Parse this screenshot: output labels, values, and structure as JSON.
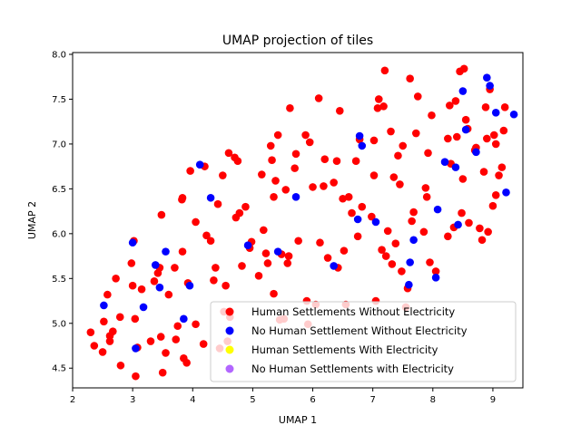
{
  "chart_data": {
    "type": "scatter",
    "title": "UMAP projection of tiles",
    "xlabel": "UMAP 1",
    "ylabel": "UMAP 2",
    "xlim": [
      2.0,
      9.5
    ],
    "ylim": [
      4.28,
      8.02
    ],
    "x_ticks": [
      2,
      3,
      4,
      5,
      6,
      7,
      8,
      9
    ],
    "y_ticks": [
      4.5,
      5.0,
      5.5,
      6.0,
      6.5,
      7.0,
      7.5,
      8.0
    ],
    "x_tick_labels": [
      "2",
      "3",
      "4",
      "5",
      "6",
      "7",
      "8",
      "9"
    ],
    "y_tick_labels": [
      "4.5",
      "5.0",
      "5.5",
      "6.0",
      "6.5",
      "7.0",
      "7.5",
      "8.0"
    ],
    "grid": false,
    "legend_position": "lower-right",
    "series": [
      {
        "name": "Human Settlements Without Electricity",
        "color": "#ff0000",
        "points": [
          [
            2.3,
            4.9
          ],
          [
            2.36,
            4.75
          ],
          [
            2.5,
            4.68
          ],
          [
            2.52,
            5.02
          ],
          [
            2.58,
            5.32
          ],
          [
            2.62,
            4.86
          ],
          [
            2.67,
            4.91
          ],
          [
            2.72,
            5.5
          ],
          [
            2.79,
            5.07
          ],
          [
            2.8,
            4.53
          ],
          [
            2.62,
            4.8
          ],
          [
            2.98,
            5.67
          ],
          [
            3.0,
            5.42
          ],
          [
            3.02,
            5.92
          ],
          [
            3.04,
            5.05
          ],
          [
            3.05,
            4.41
          ],
          [
            3.08,
            4.73
          ],
          [
            3.15,
            5.38
          ],
          [
            3.3,
            4.8
          ],
          [
            3.36,
            5.47
          ],
          [
            3.42,
            5.56
          ],
          [
            3.45,
            5.62
          ],
          [
            3.47,
            4.85
          ],
          [
            3.48,
            6.21
          ],
          [
            3.5,
            4.45
          ],
          [
            3.55,
            4.67
          ],
          [
            3.6,
            5.32
          ],
          [
            3.7,
            5.62
          ],
          [
            3.72,
            4.82
          ],
          [
            3.75,
            4.97
          ],
          [
            3.82,
            6.38
          ],
          [
            3.83,
            6.4
          ],
          [
            3.83,
            5.8
          ],
          [
            3.85,
            4.61
          ],
          [
            3.9,
            4.56
          ],
          [
            3.92,
            5.45
          ],
          [
            3.96,
            6.7
          ],
          [
            4.05,
            6.13
          ],
          [
            4.05,
            4.99
          ],
          [
            4.18,
            4.77
          ],
          [
            4.2,
            6.75
          ],
          [
            4.23,
            5.98
          ],
          [
            4.3,
            5.92
          ],
          [
            4.35,
            5.48
          ],
          [
            4.38,
            5.62
          ],
          [
            4.42,
            6.33
          ],
          [
            4.45,
            4.72
          ],
          [
            4.5,
            6.65
          ],
          [
            4.52,
            5.13
          ],
          [
            4.55,
            5.42
          ],
          [
            4.58,
            4.8
          ],
          [
            4.6,
            6.9
          ],
          [
            4.62,
            5.07
          ],
          [
            4.7,
            6.85
          ],
          [
            4.72,
            6.18
          ],
          [
            4.75,
            6.81
          ],
          [
            4.78,
            6.23
          ],
          [
            4.82,
            5.64
          ],
          [
            4.88,
            6.3
          ],
          [
            4.95,
            5.84
          ],
          [
            4.98,
            5.91
          ],
          [
            5.1,
            5.53
          ],
          [
            5.15,
            6.66
          ],
          [
            5.18,
            6.04
          ],
          [
            5.22,
            5.78
          ],
          [
            5.25,
            5.67
          ],
          [
            5.3,
            6.98
          ],
          [
            5.32,
            6.82
          ],
          [
            5.35,
            6.41
          ],
          [
            5.35,
            5.33
          ],
          [
            5.38,
            6.59
          ],
          [
            5.42,
            7.1
          ],
          [
            5.45,
            5.04
          ],
          [
            5.48,
            5.77
          ],
          [
            5.52,
            5.05
          ],
          [
            5.55,
            6.49
          ],
          [
            5.58,
            5.67
          ],
          [
            5.6,
            5.75
          ],
          [
            5.62,
            7.4
          ],
          [
            5.7,
            6.73
          ],
          [
            5.72,
            6.89
          ],
          [
            5.76,
            5.92
          ],
          [
            5.88,
            7.1
          ],
          [
            5.9,
            5.25
          ],
          [
            5.92,
            4.99
          ],
          [
            5.95,
            7.02
          ],
          [
            6.0,
            6.52
          ],
          [
            6.05,
            5.21
          ],
          [
            6.1,
            7.51
          ],
          [
            6.12,
            5.9
          ],
          [
            6.18,
            6.53
          ],
          [
            6.2,
            6.83
          ],
          [
            6.25,
            5.73
          ],
          [
            6.35,
            6.57
          ],
          [
            6.4,
            6.81
          ],
          [
            6.42,
            5.62
          ],
          [
            6.45,
            7.37
          ],
          [
            6.5,
            6.39
          ],
          [
            6.52,
            5.81
          ],
          [
            6.55,
            5.21
          ],
          [
            6.6,
            6.41
          ],
          [
            6.65,
            6.23
          ],
          [
            6.72,
            6.81
          ],
          [
            6.75,
            5.97
          ],
          [
            6.78,
            7.05
          ],
          [
            6.82,
            6.3
          ],
          [
            6.98,
            6.19
          ],
          [
            7.02,
            7.04
          ],
          [
            7.02,
            6.65
          ],
          [
            7.05,
            5.25
          ],
          [
            7.08,
            7.4
          ],
          [
            7.1,
            7.5
          ],
          [
            7.15,
            5.82
          ],
          [
            7.18,
            7.42
          ],
          [
            7.2,
            7.82
          ],
          [
            7.22,
            5.75
          ],
          [
            7.25,
            6.03
          ],
          [
            7.3,
            7.14
          ],
          [
            7.32,
            5.66
          ],
          [
            7.35,
            6.63
          ],
          [
            7.38,
            5.89
          ],
          [
            7.42,
            6.87
          ],
          [
            7.45,
            6.55
          ],
          [
            7.48,
            5.58
          ],
          [
            7.5,
            6.98
          ],
          [
            7.55,
            5.18
          ],
          [
            7.58,
            5.39
          ],
          [
            7.62,
            7.73
          ],
          [
            7.65,
            6.14
          ],
          [
            7.68,
            6.24
          ],
          [
            7.72,
            7.12
          ],
          [
            7.75,
            7.53
          ],
          [
            7.85,
            6.02
          ],
          [
            7.88,
            6.51
          ],
          [
            7.9,
            6.41
          ],
          [
            7.92,
            6.9
          ],
          [
            7.95,
            5.68
          ],
          [
            7.98,
            7.32
          ],
          [
            8.05,
            5.58
          ],
          [
            8.25,
            7.06
          ],
          [
            8.25,
            5.97
          ],
          [
            8.28,
            7.43
          ],
          [
            8.3,
            6.78
          ],
          [
            8.35,
            6.07
          ],
          [
            8.38,
            7.48
          ],
          [
            8.4,
            7.08
          ],
          [
            8.45,
            7.81
          ],
          [
            8.48,
            6.23
          ],
          [
            8.5,
            6.61
          ],
          [
            8.52,
            7.84
          ],
          [
            8.55,
            7.27
          ],
          [
            8.58,
            7.17
          ],
          [
            8.6,
            6.12
          ],
          [
            8.7,
            6.93
          ],
          [
            8.72,
            6.96
          ],
          [
            8.78,
            6.06
          ],
          [
            8.82,
            5.93
          ],
          [
            8.85,
            6.69
          ],
          [
            8.88,
            7.41
          ],
          [
            8.9,
            7.06
          ],
          [
            8.95,
            7.61
          ],
          [
            9.0,
            6.31
          ],
          [
            9.02,
            7.1
          ],
          [
            9.05,
            6.43
          ],
          [
            9.1,
            6.65
          ],
          [
            9.15,
            6.74
          ],
          [
            9.18,
            7.15
          ],
          [
            9.2,
            7.41
          ],
          [
            9.05,
            7.0
          ],
          [
            8.92,
            6.02
          ]
        ]
      },
      {
        "name": "No Human Settlement Without Electricity",
        "color": "#0000ff",
        "points": [
          [
            2.52,
            5.2
          ],
          [
            3.0,
            5.9
          ],
          [
            3.05,
            4.72
          ],
          [
            3.18,
            5.18
          ],
          [
            3.38,
            5.65
          ],
          [
            3.45,
            5.4
          ],
          [
            3.55,
            5.8
          ],
          [
            3.85,
            5.05
          ],
          [
            3.95,
            5.42
          ],
          [
            4.12,
            6.77
          ],
          [
            4.3,
            6.4
          ],
          [
            4.92,
            5.87
          ],
          [
            5.42,
            5.8
          ],
          [
            5.72,
            6.41
          ],
          [
            6.35,
            5.64
          ],
          [
            6.75,
            6.16
          ],
          [
            6.78,
            7.09
          ],
          [
            6.82,
            6.98
          ],
          [
            7.05,
            6.13
          ],
          [
            7.6,
            5.43
          ],
          [
            7.62,
            5.68
          ],
          [
            7.68,
            5.93
          ],
          [
            8.05,
            5.51
          ],
          [
            8.08,
            6.27
          ],
          [
            8.2,
            6.8
          ],
          [
            8.38,
            6.74
          ],
          [
            8.42,
            6.1
          ],
          [
            8.5,
            7.59
          ],
          [
            8.55,
            7.16
          ],
          [
            8.72,
            6.91
          ],
          [
            8.9,
            7.74
          ],
          [
            8.95,
            7.65
          ],
          [
            9.05,
            7.35
          ],
          [
            9.22,
            6.46
          ],
          [
            9.35,
            7.33
          ]
        ]
      },
      {
        "name": "Human Settlements With Electricity",
        "color": "#ffff00",
        "points": []
      },
      {
        "name": "No Human Settlements with Electricity",
        "color": "#b266ff",
        "points": []
      }
    ]
  }
}
